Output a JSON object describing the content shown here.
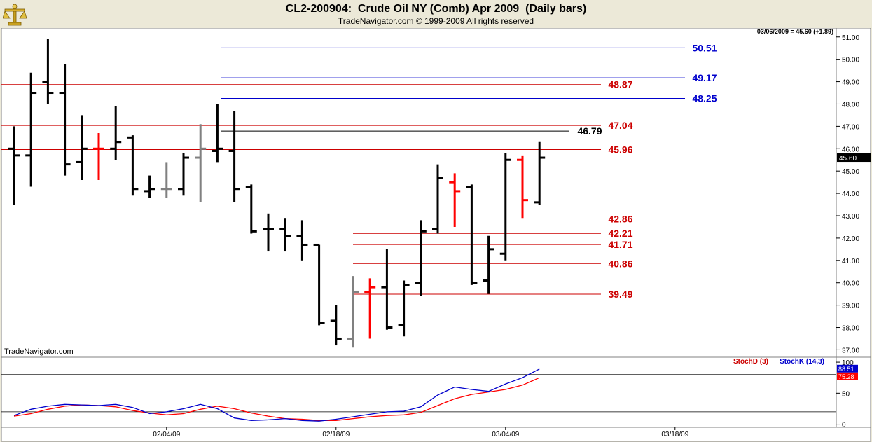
{
  "header": {
    "title": "CL2-200904:  Crude Oil NY (Comb) Apr 2009  (Daily bars)",
    "copyright": "TradeNavigator.com © 1999-2009 All rights reserved",
    "last_quote": "03/06/2009 = 45.60 (+1.89)",
    "watermark": "TradeNavigator.com"
  },
  "chart_data": [
    {
      "type": "ohlc",
      "title": "CL2-200904:  Crude Oil NY (Comb) Apr 2009  (Daily bars)",
      "ylim": [
        36.7,
        51.4
      ],
      "yticks": [
        "37.00",
        "38.00",
        "39.00",
        "40.00",
        "41.00",
        "42.00",
        "43.00",
        "44.00",
        "45.00",
        "46.00",
        "47.00",
        "48.00",
        "49.00",
        "50.00",
        "51.00"
      ],
      "last_price_label": "45.60",
      "bars": [
        {
          "x": 0,
          "high": 47.0,
          "low": 43.5,
          "open": 46.0,
          "close": 45.7,
          "color": "#000000"
        },
        {
          "x": 1,
          "high": 49.4,
          "low": 44.3,
          "open": 45.7,
          "close": 48.5,
          "color": "#000000"
        },
        {
          "x": 2,
          "high": 50.9,
          "low": 48.0,
          "open": 49.0,
          "close": 48.5,
          "color": "#000000"
        },
        {
          "x": 3,
          "high": 49.8,
          "low": 44.8,
          "open": 48.5,
          "close": 45.3,
          "color": "#000000"
        },
        {
          "x": 4,
          "high": 47.5,
          "low": 44.6,
          "open": 45.4,
          "close": 46.0,
          "color": "#000000"
        },
        {
          "x": 5,
          "high": 46.7,
          "low": 44.6,
          "open": 46.0,
          "close": 46.0,
          "color": "#ff0000"
        },
        {
          "x": 6,
          "high": 47.9,
          "low": 45.5,
          "open": 46.0,
          "close": 46.3,
          "color": "#000000"
        },
        {
          "x": 7,
          "high": 46.6,
          "low": 43.9,
          "open": 46.5,
          "close": 44.2,
          "color": "#000000"
        },
        {
          "x": 8,
          "high": 44.8,
          "low": 43.8,
          "open": 44.1,
          "close": 44.2,
          "color": "#000000"
        },
        {
          "x": 9,
          "high": 45.4,
          "low": 43.8,
          "open": 44.2,
          "close": 44.2,
          "color": "#808080"
        },
        {
          "x": 10,
          "high": 45.8,
          "low": 43.9,
          "open": 44.2,
          "close": 45.6,
          "color": "#000000"
        },
        {
          "x": 11,
          "high": 47.1,
          "low": 43.6,
          "open": 45.6,
          "close": 46.0,
          "color": "#808080"
        },
        {
          "x": 12,
          "high": 48.0,
          "low": 45.4,
          "open": 45.9,
          "close": 46.0,
          "color": "#000000"
        },
        {
          "x": 13,
          "high": 47.7,
          "low": 43.6,
          "open": 45.9,
          "close": 44.2,
          "color": "#000000"
        },
        {
          "x": 14,
          "high": 44.4,
          "low": 42.2,
          "open": 44.3,
          "close": 42.3,
          "color": "#000000"
        },
        {
          "x": 15,
          "high": 43.1,
          "low": 41.4,
          "open": 42.4,
          "close": 42.4,
          "color": "#000000"
        },
        {
          "x": 16,
          "high": 42.9,
          "low": 41.4,
          "open": 42.4,
          "close": 42.1,
          "color": "#000000"
        },
        {
          "x": 17,
          "high": 42.8,
          "low": 41.0,
          "open": 42.1,
          "close": 41.7,
          "color": "#000000"
        },
        {
          "x": 18,
          "high": 41.7,
          "low": 38.1,
          "open": 41.7,
          "close": 38.2,
          "color": "#000000"
        },
        {
          "x": 19,
          "high": 39.0,
          "low": 37.2,
          "open": 38.3,
          "close": 37.5,
          "color": "#000000"
        },
        {
          "x": 20,
          "high": 40.3,
          "low": 37.1,
          "open": 37.5,
          "close": 39.6,
          "color": "#808080"
        },
        {
          "x": 21,
          "high": 40.2,
          "low": 37.5,
          "open": 39.6,
          "close": 39.8,
          "color": "#ff0000"
        },
        {
          "x": 22,
          "high": 41.5,
          "low": 37.9,
          "open": 39.8,
          "close": 38.0,
          "color": "#000000"
        },
        {
          "x": 23,
          "high": 40.1,
          "low": 37.6,
          "open": 38.1,
          "close": 39.9,
          "color": "#000000"
        },
        {
          "x": 24,
          "high": 42.8,
          "low": 39.4,
          "open": 40.0,
          "close": 42.3,
          "color": "#000000"
        },
        {
          "x": 25,
          "high": 45.3,
          "low": 42.2,
          "open": 42.4,
          "close": 44.7,
          "color": "#000000"
        },
        {
          "x": 26,
          "high": 44.9,
          "low": 42.5,
          "open": 44.5,
          "close": 44.1,
          "color": "#ff0000"
        },
        {
          "x": 27,
          "high": 44.4,
          "low": 39.9,
          "open": 44.3,
          "close": 40.0,
          "color": "#000000"
        },
        {
          "x": 28,
          "high": 42.1,
          "low": 39.5,
          "open": 40.1,
          "close": 41.5,
          "color": "#000000"
        },
        {
          "x": 29,
          "high": 45.8,
          "low": 41.0,
          "open": 41.3,
          "close": 45.5,
          "color": "#000000"
        },
        {
          "x": 30,
          "high": 45.7,
          "low": 42.9,
          "open": 45.5,
          "close": 43.7,
          "color": "#ff0000"
        },
        {
          "x": 31,
          "high": 46.3,
          "low": 43.5,
          "open": 43.6,
          "close": 45.6,
          "color": "#000000"
        }
      ],
      "levels": [
        {
          "value": 50.51,
          "label": "50.51",
          "color": "#0000cc",
          "from_bar": 12.2
        },
        {
          "value": 49.17,
          "label": "49.17",
          "color": "#0000cc",
          "from_bar": 12.2
        },
        {
          "value": 48.87,
          "label": "48.87",
          "color": "#cc0000",
          "from_bar": -1
        },
        {
          "value": 48.25,
          "label": "48.25",
          "color": "#0000cc",
          "from_bar": 12.2
        },
        {
          "value": 47.04,
          "label": "47.04",
          "color": "#cc0000",
          "from_bar": -1
        },
        {
          "value": 46.79,
          "label": "46.79",
          "color": "#000000",
          "from_bar": 12.2
        },
        {
          "value": 45.96,
          "label": "45.96",
          "color": "#cc0000",
          "from_bar": -1
        },
        {
          "value": 42.86,
          "label": "42.86",
          "color": "#cc0000",
          "from_bar": 20.0
        },
        {
          "value": 42.21,
          "label": "42.21",
          "color": "#cc0000",
          "from_bar": 20.0
        },
        {
          "value": 41.71,
          "label": "41.71",
          "color": "#cc0000",
          "from_bar": 20.0
        },
        {
          "value": 40.86,
          "label": "40.86",
          "color": "#cc0000",
          "from_bar": 20.0
        },
        {
          "value": 39.49,
          "label": "39.49",
          "color": "#cc0000",
          "from_bar": 20.0
        }
      ]
    },
    {
      "type": "line",
      "ylim": [
        -5,
        108
      ],
      "yticks": [
        "0",
        "50",
        "100"
      ],
      "reference_lines": [
        20,
        80
      ],
      "legend": [
        "StochD (3)",
        "StochK (14,3)"
      ],
      "series": [
        {
          "name": "StochD (3)",
          "color": "#ff0000",
          "last_label": "75.28",
          "values": [
            13,
            17,
            24,
            29,
            31,
            30,
            28,
            22,
            18,
            15,
            17,
            24,
            29,
            25,
            18,
            13,
            9,
            8,
            6,
            6,
            9,
            12,
            14,
            15,
            19,
            30,
            41,
            48,
            52,
            56,
            63,
            75
          ]
        },
        {
          "name": "StochK (14,3)",
          "color": "#0000cc",
          "last_label": "88.51",
          "values": [
            14,
            24,
            29,
            32,
            31,
            30,
            32,
            27,
            17,
            20,
            25,
            32,
            25,
            10,
            6,
            7,
            9,
            6,
            5,
            8,
            12,
            16,
            20,
            21,
            28,
            47,
            60,
            56,
            53,
            65,
            75,
            89
          ]
        }
      ]
    }
  ],
  "x_axis": {
    "labels": [
      "02/04/09",
      "02/18/09",
      "03/04/09",
      "03/18/09"
    ],
    "label_bars": [
      9,
      19,
      29,
      39
    ]
  }
}
